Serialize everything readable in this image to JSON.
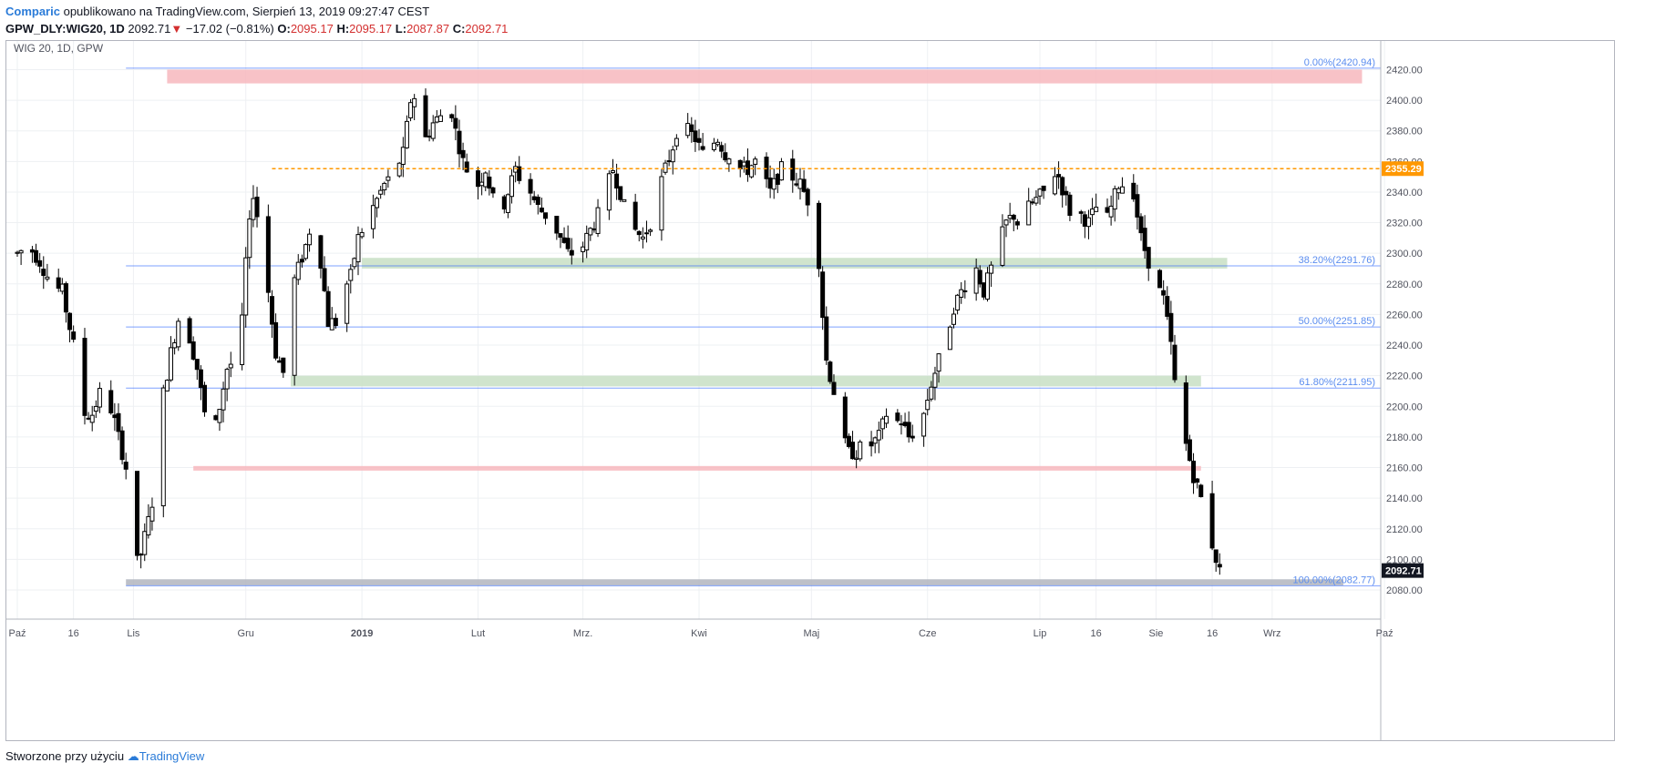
{
  "header": {
    "author": "Comparic",
    "published_text": "opublikowano na TradingView.com, Sierpień 13, 2019 09:27:47 CEST",
    "symbol": "GPW_DLY:WIG20, 1D",
    "last": "2092.71",
    "change": "−17.02 (−0.81%)",
    "o_label": "O:",
    "o_val": "2095.17",
    "h_label": "H:",
    "h_val": "2095.17",
    "l_label": "L:",
    "l_val": "2087.87",
    "c_label": "C:",
    "c_val": "2092.71"
  },
  "footer": {
    "text": "Stworzone przy użyciu",
    "brand": "TradingView"
  },
  "chart_data": {
    "type": "candlestick",
    "title": "WIG 20, 1D, GPW",
    "ylim": [
      2070,
      2430
    ],
    "y_ticks": [
      2080,
      2100,
      2120,
      2140,
      2160,
      2180,
      2200,
      2220,
      2240,
      2260,
      2280,
      2300,
      2320,
      2340,
      2360,
      2380,
      2400,
      2420
    ],
    "x_ticks": [
      "Paź",
      "16",
      "Lis",
      "Gru",
      "2019",
      "Lut",
      "Mrz.",
      "Kwi",
      "Maj",
      "Cze",
      "Lip",
      "16",
      "Sie",
      "16",
      "Wrz",
      "Paź"
    ],
    "x_tick_days": [
      0,
      15,
      31,
      61,
      92,
      123,
      151,
      182,
      212,
      243,
      273,
      288,
      304,
      319,
      335,
      365
    ],
    "grid": true,
    "current_price": "2092.71",
    "fibonacci": [
      {
        "label": "0.00%(2420.94)",
        "value": 2420.94,
        "color": "#1e60d1"
      },
      {
        "label": "38.20%(2291.76)",
        "value": 2291.76,
        "color": "#1e60d1"
      },
      {
        "label": "50.00%(2251.85)",
        "value": 2251.85,
        "color": "#1e60d1"
      },
      {
        "label": "61.80%(2211.95)",
        "value": 2211.95,
        "color": "#1e60d1"
      },
      {
        "label": "100.00%(2082.77)",
        "value": 2082.77,
        "color": "#1e60d1"
      }
    ],
    "horizontal_line": {
      "label": "2355.29",
      "value": 2355.29,
      "color": "#ff9800"
    },
    "zones": [
      {
        "color": "#f7b7bd",
        "y1": 2411,
        "y2": 2420,
        "d1": 40,
        "d2": 359
      },
      {
        "color": "#c8dfc4",
        "y1": 2290,
        "y2": 2297,
        "d1": 92,
        "d2": 323
      },
      {
        "color": "#c8dfc4",
        "y1": 2213,
        "y2": 2220,
        "d1": 73,
        "d2": 316
      },
      {
        "color": "#f7b7bd",
        "y1": 2158,
        "y2": 2161,
        "d1": 47,
        "d2": 316
      },
      {
        "color": "#b2b5be",
        "y1": 2083,
        "y2": 2087,
        "d1": 29,
        "d2": 354
      }
    ],
    "anchors": [
      [
        0,
        2300
      ],
      [
        3,
        2305
      ],
      [
        6,
        2295
      ],
      [
        9,
        2280
      ],
      [
        12,
        2275
      ],
      [
        15,
        2240
      ],
      [
        17,
        2195
      ],
      [
        20,
        2195
      ],
      [
        23,
        2215
      ],
      [
        26,
        2190
      ],
      [
        29,
        2160
      ],
      [
        30,
        2128
      ],
      [
        31,
        2092
      ],
      [
        33,
        2104
      ],
      [
        35,
        2125
      ],
      [
        37,
        2150
      ],
      [
        38,
        2195
      ],
      [
        41,
        2235
      ],
      [
        44,
        2268
      ],
      [
        46,
        2245
      ],
      [
        48,
        2225
      ],
      [
        50,
        2195
      ],
      [
        52,
        2175
      ],
      [
        54,
        2200
      ],
      [
        56,
        2225
      ],
      [
        58,
        2230
      ],
      [
        60,
        2255
      ],
      [
        61,
        2295
      ],
      [
        63,
        2340
      ],
      [
        65,
        2310
      ],
      [
        67,
        2275
      ],
      [
        69,
        2235
      ],
      [
        71,
        2222
      ],
      [
        73,
        2275
      ],
      [
        75,
        2290
      ],
      [
        77,
        2305
      ],
      [
        79,
        2325
      ],
      [
        81,
        2295
      ],
      [
        83,
        2255
      ],
      [
        85,
        2255
      ],
      [
        87,
        2275
      ],
      [
        89,
        2285
      ],
      [
        91,
        2310
      ],
      [
        94,
        2325
      ],
      [
        96,
        2335
      ],
      [
        98,
        2345
      ],
      [
        100,
        2350
      ],
      [
        103,
        2365
      ],
      [
        105,
        2400
      ],
      [
        107,
        2405
      ],
      [
        109,
        2375
      ],
      [
        111,
        2385
      ],
      [
        113,
        2390
      ],
      [
        115,
        2405
      ],
      [
        117,
        2380
      ],
      [
        119,
        2360
      ],
      [
        121,
        2350
      ],
      [
        123,
        2345
      ],
      [
        125,
        2355
      ],
      [
        127,
        2335
      ],
      [
        129,
        2325
      ],
      [
        131,
        2340
      ],
      [
        133,
        2355
      ],
      [
        135,
        2345
      ],
      [
        137,
        2340
      ],
      [
        139,
        2330
      ],
      [
        141,
        2325
      ],
      [
        143,
        2320
      ],
      [
        145,
        2310
      ],
      [
        147,
        2300
      ],
      [
        149,
        2300
      ],
      [
        151,
        2305
      ],
      [
        153,
        2315
      ],
      [
        155,
        2325
      ],
      [
        157,
        2340
      ],
      [
        159,
        2355
      ],
      [
        161,
        2340
      ],
      [
        163,
        2320
      ],
      [
        165,
        2315
      ],
      [
        167,
        2310
      ],
      [
        169,
        2320
      ],
      [
        171,
        2340
      ],
      [
        173,
        2355
      ],
      [
        175,
        2370
      ],
      [
        177,
        2390
      ],
      [
        179,
        2380
      ],
      [
        181,
        2375
      ],
      [
        183,
        2365
      ],
      [
        185,
        2370
      ],
      [
        187,
        2375
      ],
      [
        189,
        2365
      ],
      [
        191,
        2365
      ],
      [
        193,
        2355
      ],
      [
        195,
        2355
      ],
      [
        197,
        2360
      ],
      [
        199,
        2350
      ],
      [
        201,
        2340
      ],
      [
        203,
        2350
      ],
      [
        205,
        2360
      ],
      [
        207,
        2350
      ],
      [
        209,
        2345
      ],
      [
        211,
        2335
      ],
      [
        213,
        2315
      ],
      [
        214,
        2295
      ],
      [
        215,
        2260
      ],
      [
        216,
        2230
      ],
      [
        218,
        2210
      ],
      [
        220,
        2180
      ],
      [
        222,
        2170
      ],
      [
        224,
        2170
      ],
      [
        226,
        2175
      ],
      [
        228,
        2175
      ],
      [
        230,
        2180
      ],
      [
        232,
        2195
      ],
      [
        234,
        2190
      ],
      [
        236,
        2190
      ],
      [
        238,
        2180
      ],
      [
        240,
        2185
      ],
      [
        242,
        2195
      ],
      [
        244,
        2215
      ],
      [
        246,
        2230
      ],
      [
        248,
        2245
      ],
      [
        250,
        2265
      ],
      [
        252,
        2275
      ],
      [
        254,
        2285
      ],
      [
        256,
        2290
      ],
      [
        258,
        2275
      ],
      [
        260,
        2290
      ],
      [
        262,
        2305
      ],
      [
        264,
        2320
      ],
      [
        266,
        2325
      ],
      [
        268,
        2315
      ],
      [
        270,
        2330
      ],
      [
        272,
        2335
      ],
      [
        274,
        2340
      ],
      [
        276,
        2355
      ],
      [
        278,
        2350
      ],
      [
        280,
        2335
      ],
      [
        282,
        2320
      ],
      [
        284,
        2325
      ],
      [
        286,
        2320
      ],
      [
        288,
        2330
      ],
      [
        290,
        2315
      ],
      [
        292,
        2330
      ],
      [
        294,
        2345
      ],
      [
        296,
        2345
      ],
      [
        298,
        2340
      ],
      [
        300,
        2310
      ],
      [
        302,
        2295
      ],
      [
        304,
        2280
      ],
      [
        306,
        2270
      ],
      [
        308,
        2240
      ],
      [
        309,
        2215
      ],
      [
        311,
        2185
      ],
      [
        313,
        2165
      ],
      [
        314,
        2155
      ],
      [
        316,
        2140
      ],
      [
        318,
        2120
      ],
      [
        319,
        2110
      ],
      [
        321,
        2092
      ]
    ]
  }
}
